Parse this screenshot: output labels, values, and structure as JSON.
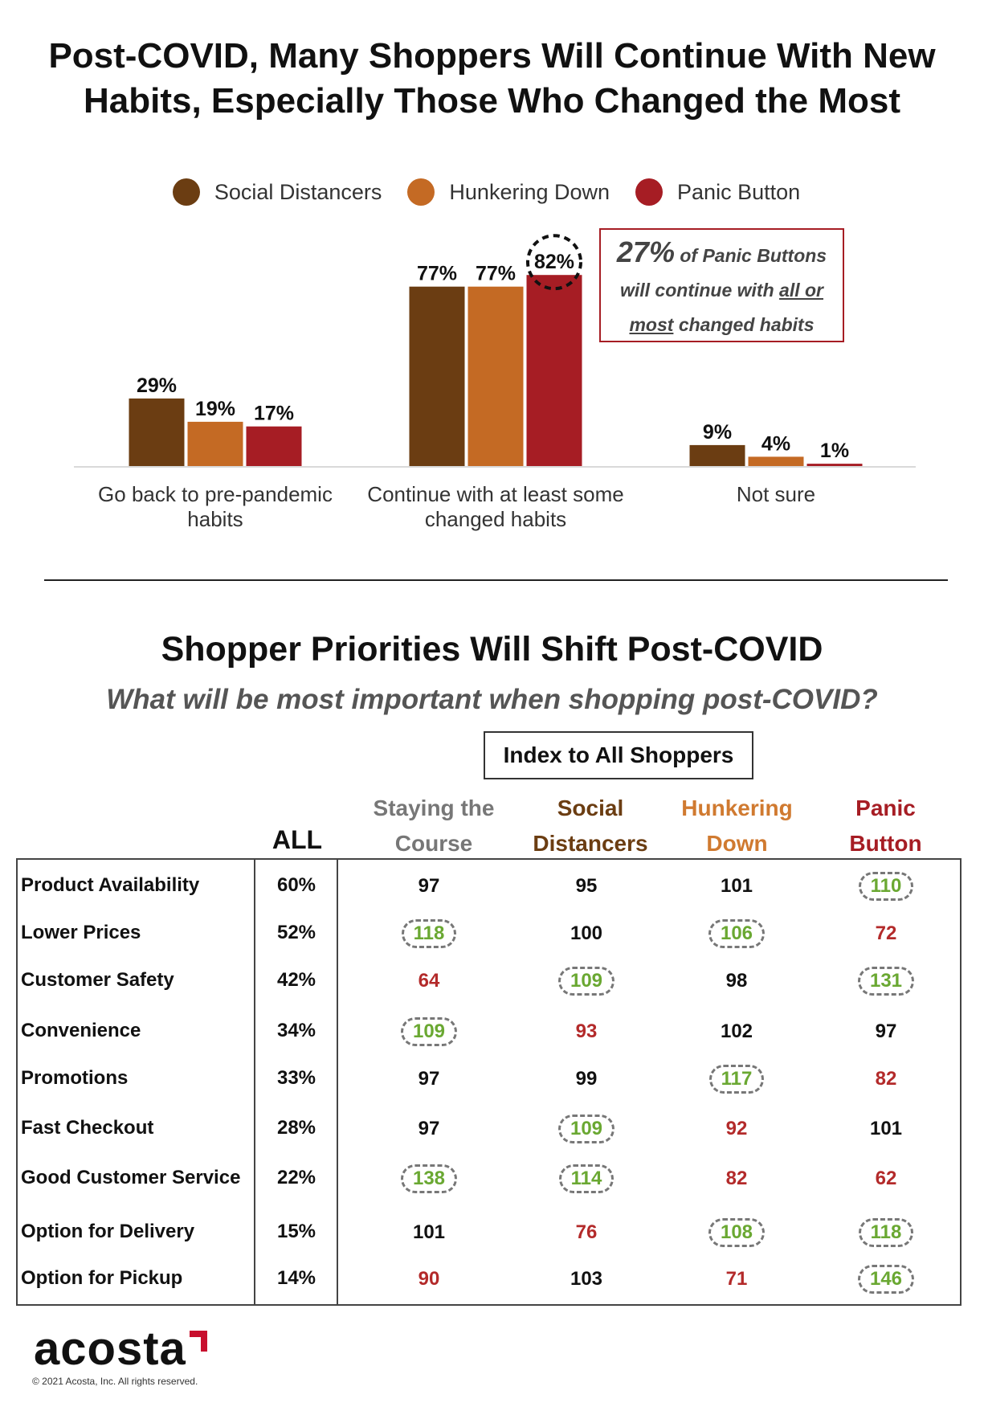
{
  "header": {
    "title_line1": "Post-COVID, Many Shoppers Will Continue With New",
    "title_line2": "Habits, Especially Those Who Changed the Most"
  },
  "chart_data": {
    "type": "bar",
    "categories": [
      "Go back to pre-pandemic habits",
      "Continue with at least some changed habits",
      "Not sure"
    ],
    "category_lines": [
      [
        "Go back to pre-pandemic",
        "habits"
      ],
      [
        "Continue with at least some",
        "changed habits"
      ],
      [
        "Not sure"
      ]
    ],
    "series": [
      {
        "name": "Social Distancers",
        "values": [
          29,
          77,
          9
        ],
        "color": "#6b3d12"
      },
      {
        "name": "Hunkering Down",
        "values": [
          19,
          77,
          4
        ],
        "color": "#c46a24"
      },
      {
        "name": "Panic Button",
        "values": [
          17,
          82,
          1
        ],
        "color": "#a61d24"
      }
    ],
    "legend_position": "top",
    "grid": false,
    "ylim": [
      0,
      100
    ]
  },
  "callout": {
    "big": "27%",
    "line1": "of Panic Buttons",
    "line2_pre": "will continue with",
    "line2_u": "all or",
    "line3_u": "most",
    "line3_post": "changed habits"
  },
  "table": {
    "title": "Shopper Priorities Will Shift Post-COVID",
    "subtitle": "What will be most important when shopping post-COVID?",
    "index_label": "Index to All Shoppers",
    "headers": {
      "all": "ALL",
      "stay1": "Staying the",
      "stay2": "Course",
      "social1": "Social",
      "social2": "Distancers",
      "hunker1": "Hunkering",
      "hunker2": "Down",
      "panic1": "Panic",
      "panic2": "Button"
    },
    "header_colors": {
      "stay": "#777777",
      "social": "#6b3d12",
      "hunker": "#d07a30",
      "panic": "#a61d24"
    },
    "rows": [
      {
        "label": "Product Availability",
        "all": "60%",
        "cells": [
          [
            "97",
            "black",
            false
          ],
          [
            "95",
            "black",
            false
          ],
          [
            "101",
            "black",
            false
          ],
          [
            "110",
            "green",
            true
          ]
        ]
      },
      {
        "label": "Lower Prices",
        "all": "52%",
        "cells": [
          [
            "118",
            "green",
            true
          ],
          [
            "100",
            "black",
            false
          ],
          [
            "106",
            "green",
            true
          ],
          [
            "72",
            "red",
            false
          ]
        ]
      },
      {
        "label": "Customer Safety",
        "all": "42%",
        "cells": [
          [
            "64",
            "red",
            false
          ],
          [
            "109",
            "green",
            true
          ],
          [
            "98",
            "black",
            false
          ],
          [
            "131",
            "green",
            true
          ]
        ]
      },
      {
        "label": "Convenience",
        "all": "34%",
        "cells": [
          [
            "109",
            "green",
            true
          ],
          [
            "93",
            "red",
            false
          ],
          [
            "102",
            "black",
            false
          ],
          [
            "97",
            "black",
            false
          ]
        ]
      },
      {
        "label": "Promotions",
        "all": "33%",
        "cells": [
          [
            "97",
            "black",
            false
          ],
          [
            "99",
            "black",
            false
          ],
          [
            "117",
            "green",
            true
          ],
          [
            "82",
            "red",
            false
          ]
        ]
      },
      {
        "label": "Fast Checkout",
        "all": "28%",
        "cells": [
          [
            "97",
            "black",
            false
          ],
          [
            "109",
            "green",
            true
          ],
          [
            "92",
            "red",
            false
          ],
          [
            "101",
            "black",
            false
          ]
        ]
      },
      {
        "label": "Good Customer Service",
        "all": "22%",
        "cells": [
          [
            "138",
            "green",
            true
          ],
          [
            "114",
            "green",
            true
          ],
          [
            "82",
            "red",
            false
          ],
          [
            "62",
            "red",
            false
          ]
        ]
      },
      {
        "label": "Option for Delivery",
        "all": "15%",
        "cells": [
          [
            "101",
            "black",
            false
          ],
          [
            "76",
            "red",
            false
          ],
          [
            "108",
            "green",
            true
          ],
          [
            "118",
            "green",
            true
          ]
        ]
      },
      {
        "label": "Option for Pickup",
        "all": "14%",
        "cells": [
          [
            "90",
            "red",
            false
          ],
          [
            "103",
            "black",
            false
          ],
          [
            "71",
            "red",
            false
          ],
          [
            "146",
            "green",
            true
          ]
        ]
      }
    ]
  },
  "footer": {
    "logo": "acosta",
    "copyright": "© 2021 Acosta, Inc. All rights reserved."
  }
}
